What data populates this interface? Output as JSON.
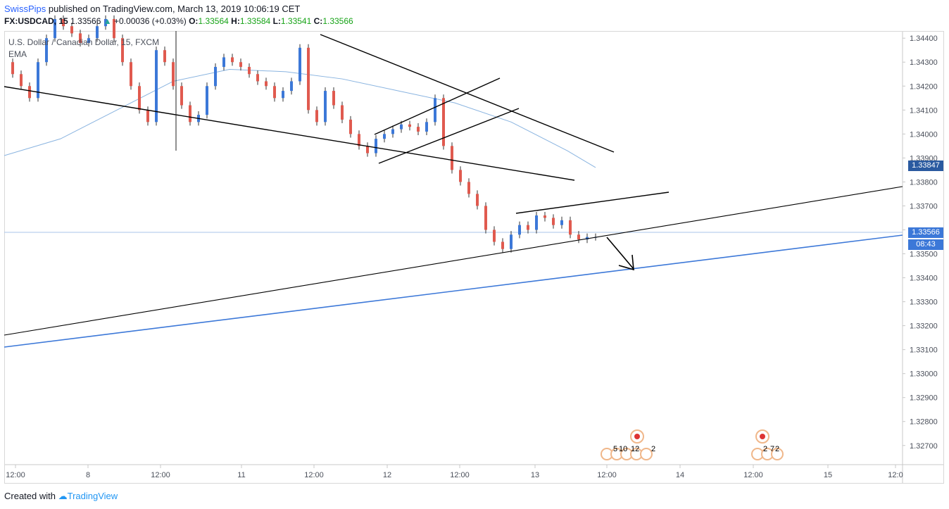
{
  "header": {
    "author": "SwissPips",
    "published_text": " published on TradingView.com, March 13, 2019 10:06:19 CET"
  },
  "ohlc": {
    "symbol": "FX:USDCAD, 15",
    "last": "1.33566",
    "change": "+0.00036 (+0.03%)",
    "o_label": "O:",
    "o": "1.33564",
    "h_label": "H:",
    "h": "1.33584",
    "l_label": "L:",
    "l": "1.33541",
    "c_label": "C:",
    "c": "1.33566"
  },
  "legend": {
    "title": "U.S. Dollar / Canadian Dollar, 15, FXCM",
    "indicator": "EMA"
  },
  "axis": {
    "price_current": "1.33847",
    "price_last": "1.33566",
    "countdown": "08:43"
  },
  "footer": {
    "created_with": "Created with",
    "brand": "TradingView"
  },
  "events": {
    "cluster1": [
      "5",
      "10",
      "12",
      "2"
    ],
    "cluster2": [
      "2",
      "7",
      "2"
    ]
  },
  "colors": {
    "up": "#3c78d8",
    "down": "#e05a4f",
    "ema": "#8ab4e0",
    "blue_line": "#3c78d8",
    "trendline": "#000000",
    "axis_label_bg": "#2a5aa0",
    "last_price_bg": "#3c78d8"
  },
  "chart_data": {
    "type": "line",
    "title": "",
    "xlabel": "",
    "ylabel": "",
    "ylim": [
      1.3262,
      1.3443
    ],
    "y_ticks": [
      "1.34400",
      "1.34300",
      "1.34200",
      "1.34100",
      "1.34000",
      "1.33900",
      "1.33800",
      "1.33700",
      "1.33600",
      "1.33500",
      "1.33400",
      "1.33300",
      "1.33200",
      "1.33100",
      "1.33000",
      "1.32900",
      "1.32800",
      "1.32700"
    ],
    "x_ticks": [
      "12:00",
      "8",
      "12:00",
      "11",
      "12:00",
      "12",
      "12:00",
      "13",
      "12:00",
      "14",
      "12:00",
      "15",
      "12:0"
    ],
    "series": [
      {
        "name": "U.S. Dollar / Canadian Dollar, 15, FXCM",
        "x": [
          0,
          12,
          24,
          36,
          48,
          60,
          72,
          84,
          96,
          108,
          120,
          132,
          144,
          156,
          168,
          180,
          192,
          204,
          216,
          228,
          240,
          252,
          264,
          276,
          288,
          300,
          312,
          324,
          336,
          348,
          360,
          372,
          384,
          396,
          408,
          420,
          432,
          444,
          456,
          468,
          480,
          492,
          504,
          516,
          528,
          540,
          552,
          564,
          576,
          588,
          600,
          612,
          624,
          636,
          648,
          660,
          672,
          684,
          696,
          708,
          720,
          732,
          744,
          756,
          768,
          780,
          792,
          804,
          816,
          828,
          840
        ],
        "values": [
          1.343,
          1.3425,
          1.342,
          1.3415,
          1.343,
          1.344,
          1.3448,
          1.3445,
          1.3442,
          1.3438,
          1.344,
          1.3445,
          1.3448,
          1.344,
          1.343,
          1.342,
          1.341,
          1.3405,
          1.3435,
          1.343,
          1.342,
          1.3412,
          1.3405,
          1.3408,
          1.342,
          1.3428,
          1.3432,
          1.343,
          1.3428,
          1.3425,
          1.3422,
          1.342,
          1.3415,
          1.3418,
          1.3422,
          1.3436,
          1.341,
          1.3405,
          1.3418,
          1.3412,
          1.3406,
          1.34,
          1.3395,
          1.3392,
          1.3398,
          1.34,
          1.3402,
          1.3404,
          1.3403,
          1.3401,
          1.3405,
          1.3415,
          1.3395,
          1.3385,
          1.338,
          1.3375,
          1.337,
          1.336,
          1.3355,
          1.3352,
          1.3358,
          1.3362,
          1.336,
          1.3366,
          1.3365,
          1.3362,
          1.3364,
          1.3358,
          1.3356,
          1.3357,
          1.3357
        ]
      },
      {
        "name": "EMA",
        "x": [
          0,
          80,
          160,
          240,
          320,
          400,
          480,
          560,
          640,
          720,
          800,
          840
        ],
        "values": [
          1.3391,
          1.3398,
          1.341,
          1.3422,
          1.3427,
          1.3426,
          1.3423,
          1.3418,
          1.3413,
          1.3405,
          1.3393,
          1.3386
        ]
      }
    ]
  }
}
